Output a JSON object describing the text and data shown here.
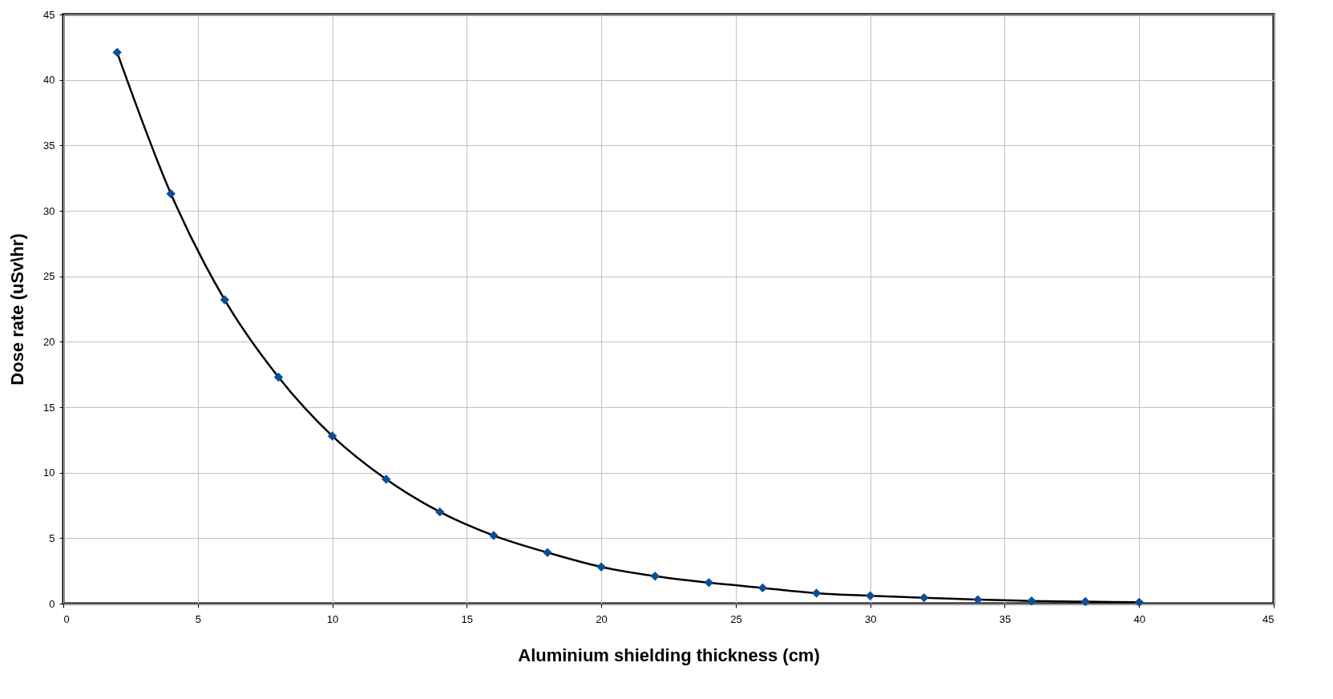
{
  "chart_data": {
    "type": "line",
    "xlabel": "Aluminium shielding thickness (cm)",
    "ylabel": "Dose rate (uSv\\hr)",
    "x": [
      2,
      4,
      6,
      8,
      10,
      12,
      14,
      16,
      18,
      20,
      22,
      24,
      26,
      28,
      30,
      32,
      34,
      36,
      38,
      40
    ],
    "series": [
      {
        "color": "#0b4f94",
        "values": [
          42.1,
          31.3,
          23.2,
          17.3,
          12.8,
          9.5,
          7.0,
          5.2,
          3.9,
          2.8,
          2.1,
          1.6,
          1.2,
          0.8,
          0.6,
          0.45,
          0.3,
          0.2,
          0.15,
          0.1
        ]
      }
    ],
    "xlim": [
      0,
      45
    ],
    "xticks": [
      0,
      5,
      10,
      15,
      20,
      25,
      30,
      35,
      40,
      45
    ],
    "ylim": [
      0,
      45
    ],
    "yticks": [
      0,
      5,
      10,
      15,
      20,
      25,
      30,
      35,
      40,
      45
    ],
    "grid": true,
    "marker": "diamond",
    "line_style": "solid"
  }
}
